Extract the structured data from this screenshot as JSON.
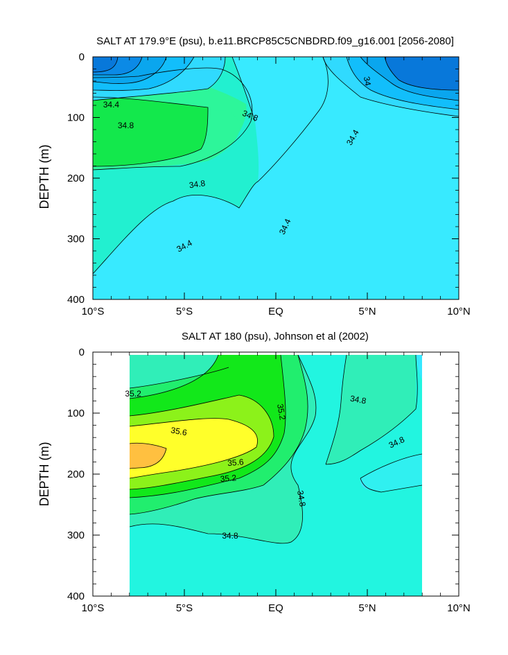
{
  "chart_data": [
    {
      "type": "heatmap",
      "title": "SALT AT 179.9°E (psu), b.e11.BRCP85C5CNBDRD.f09_g16.001 [2056-2080]",
      "ylabel": "DEPTH (m)",
      "xlabel": "",
      "xlim": [
        -10,
        10
      ],
      "ylim": [
        400,
        0
      ],
      "x_ticks": [
        -10,
        -5,
        0,
        5,
        10
      ],
      "x_tick_labels": [
        "10°S",
        "5°S",
        "EQ",
        "5°N",
        "10°N"
      ],
      "y_ticks": [
        0,
        100,
        200,
        300,
        400
      ],
      "y_tick_labels": [
        "0",
        "100",
        "200",
        "300",
        "400"
      ],
      "contour_labels": [
        {
          "text": "34.4",
          "x": -9.0,
          "y": 79,
          "rot": 0
        },
        {
          "text": "34.8",
          "x": -8.2,
          "y": 113,
          "rot": 0
        },
        {
          "text": "34.8",
          "x": -1.4,
          "y": 97,
          "rot": 22
        },
        {
          "text": "34",
          "x": 5.0,
          "y": 40,
          "rot": 80
        },
        {
          "text": "34.4",
          "x": 4.2,
          "y": 133,
          "rot": -60
        },
        {
          "text": "34.8",
          "x": -4.3,
          "y": 210,
          "rot": -8
        },
        {
          "text": "34.4",
          "x": 0.5,
          "y": 280,
          "rot": -65
        },
        {
          "text": "34.4",
          "x": -5.0,
          "y": 312,
          "rot": -28
        }
      ]
    },
    {
      "type": "heatmap",
      "title": "SALT AT 180 (psu), Johnson et al (2002)",
      "ylabel": "DEPTH (m)",
      "xlabel": "",
      "xlim": [
        -10,
        10
      ],
      "ylim": [
        400,
        0
      ],
      "x_ticks": [
        -10,
        -5,
        0,
        5,
        10
      ],
      "x_tick_labels": [
        "10°S",
        "5°S",
        "EQ",
        "5°N",
        "10°N"
      ],
      "y_ticks": [
        0,
        100,
        200,
        300,
        400
      ],
      "y_tick_labels": [
        "0",
        "100",
        "200",
        "300",
        "400"
      ],
      "contour_labels": [
        {
          "text": "35.2",
          "x": -7.8,
          "y": 68,
          "rot": 0
        },
        {
          "text": "35.2",
          "x": 0.3,
          "y": 98,
          "rot": 80
        },
        {
          "text": "34.8",
          "x": 4.5,
          "y": 78,
          "rot": 10
        },
        {
          "text": "34.8",
          "x": 6.6,
          "y": 148,
          "rot": -25
        },
        {
          "text": "35.6",
          "x": -5.3,
          "y": 130,
          "rot": 10
        },
        {
          "text": "35.6",
          "x": -2.2,
          "y": 181,
          "rot": -5
        },
        {
          "text": "35.2",
          "x": -2.6,
          "y": 207,
          "rot": -5
        },
        {
          "text": "34.8",
          "x": 1.4,
          "y": 240,
          "rot": 80
        },
        {
          "text": "34.8",
          "x": -2.5,
          "y": 301,
          "rot": 0
        }
      ]
    }
  ]
}
